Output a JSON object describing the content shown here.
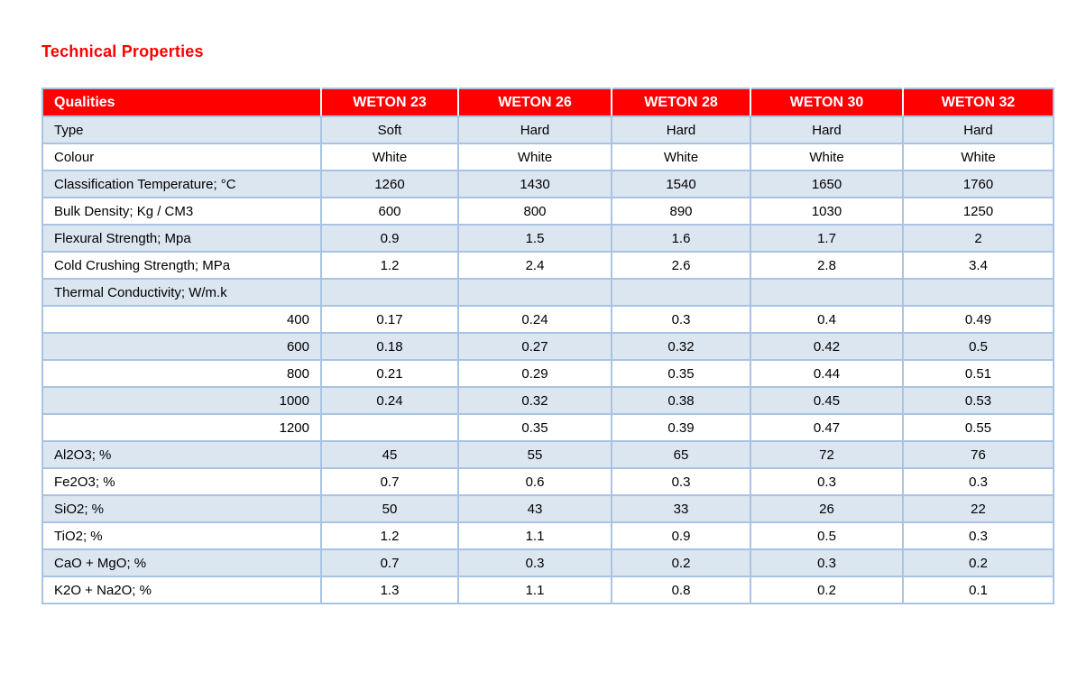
{
  "page": {
    "title": "Technical Properties"
  },
  "colors": {
    "accent_red": "#ff0000",
    "band_blue": "#dce6f1",
    "border_blue": "#a8c4e2",
    "header_text": "#ffffff"
  },
  "table": {
    "columns": [
      "Qualities",
      "WETON 23",
      "WETON 26",
      "WETON 28",
      "WETON 30",
      "WETON 32"
    ],
    "rows": [
      {
        "label": "Type",
        "align": "left",
        "values": [
          "Soft",
          "Hard",
          "Hard",
          "Hard",
          "Hard"
        ]
      },
      {
        "label": "Colour",
        "align": "left",
        "values": [
          "White",
          "White",
          "White",
          "White",
          "White"
        ]
      },
      {
        "label": "Classification Temperature; °C",
        "align": "left",
        "values": [
          "1260",
          "1430",
          "1540",
          "1650",
          "1760"
        ]
      },
      {
        "label": "Bulk Density; Kg / CM3",
        "align": "left",
        "values": [
          "600",
          "800",
          "890",
          "1030",
          "1250"
        ]
      },
      {
        "label": "Flexural Strength; Mpa",
        "align": "left",
        "values": [
          "0.9",
          "1.5",
          "1.6",
          "1.7",
          "2"
        ]
      },
      {
        "label": "Cold Crushing Strength; MPa",
        "align": "left",
        "values": [
          "1.2",
          "2.4",
          "2.6",
          "2.8",
          "3.4"
        ]
      },
      {
        "label": "Thermal Conductivity; W/m.k",
        "align": "left",
        "values": [
          "",
          "",
          "",
          "",
          ""
        ]
      },
      {
        "label": "400",
        "align": "right",
        "values": [
          "0.17",
          "0.24",
          "0.3",
          "0.4",
          "0.49"
        ]
      },
      {
        "label": "600",
        "align": "right",
        "values": [
          "0.18",
          "0.27",
          "0.32",
          "0.42",
          "0.5"
        ]
      },
      {
        "label": "800",
        "align": "right",
        "values": [
          "0.21",
          "0.29",
          "0.35",
          "0.44",
          "0.51"
        ]
      },
      {
        "label": "1000",
        "align": "right",
        "values": [
          "0.24",
          "0.32",
          "0.38",
          "0.45",
          "0.53"
        ]
      },
      {
        "label": "1200",
        "align": "right",
        "values": [
          "",
          "0.35",
          "0.39",
          "0.47",
          "0.55"
        ]
      },
      {
        "label": "Al2O3; %",
        "align": "left",
        "values": [
          "45",
          "55",
          "65",
          "72",
          "76"
        ]
      },
      {
        "label": "Fe2O3; %",
        "align": "left",
        "values": [
          "0.7",
          "0.6",
          "0.3",
          "0.3",
          "0.3"
        ]
      },
      {
        "label": "SiO2; %",
        "align": "left",
        "values": [
          "50",
          "43",
          "33",
          "26",
          "22"
        ]
      },
      {
        "label": "TiO2; %",
        "align": "left",
        "values": [
          "1.2",
          "1.1",
          "0.9",
          "0.5",
          "0.3"
        ]
      },
      {
        "label": "CaO + MgO; %",
        "align": "left",
        "values": [
          "0.7",
          "0.3",
          "0.2",
          "0.3",
          "0.2"
        ]
      },
      {
        "label": "K2O + Na2O; %",
        "align": "left",
        "values": [
          "1.3",
          "1.1",
          "0.8",
          "0.2",
          "0.1"
        ]
      }
    ]
  }
}
